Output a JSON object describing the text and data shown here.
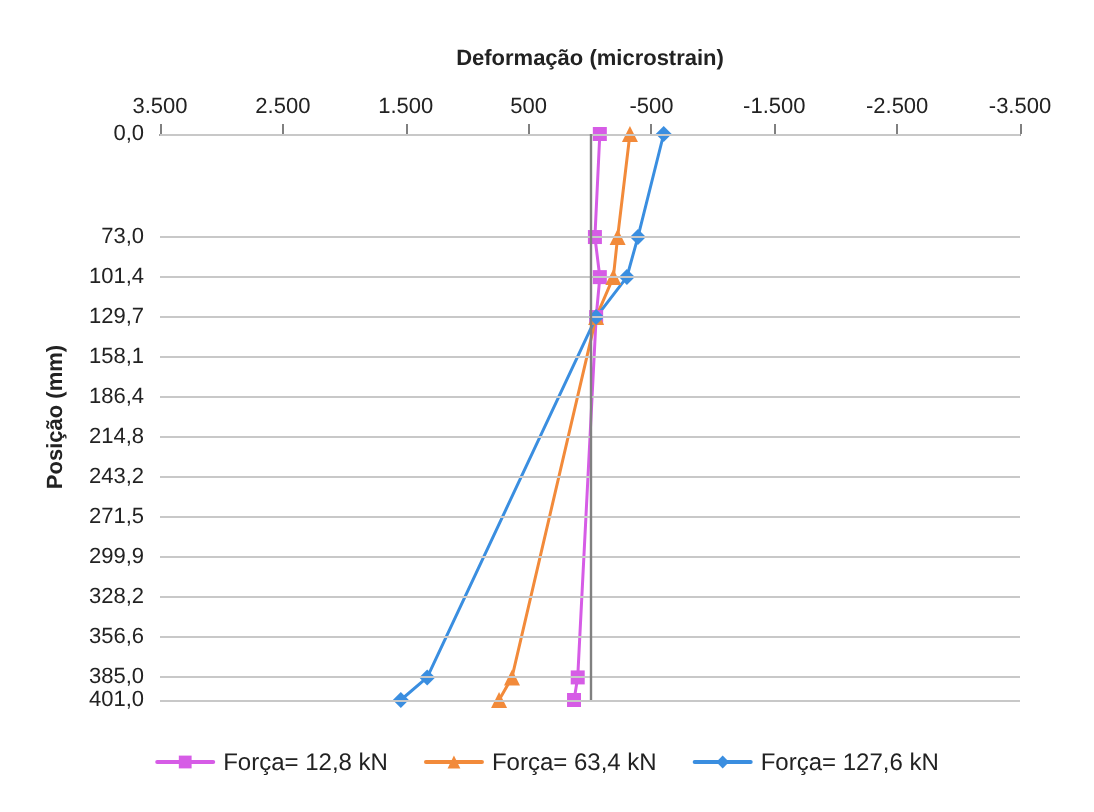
{
  "chart_data": {
    "type": "line",
    "xlabel": "Deformação (microstrain)",
    "ylabel": "Posição (mm)",
    "xlim": [
      3500,
      -3500
    ],
    "xticks": [
      {
        "value": 3500,
        "label": "3.500"
      },
      {
        "value": 2500,
        "label": "2.500"
      },
      {
        "value": 1500,
        "label": "1.500"
      },
      {
        "value": 500,
        "label": "500"
      },
      {
        "value": -500,
        "label": "-500"
      },
      {
        "value": -1500,
        "label": "-1.500"
      },
      {
        "value": -2500,
        "label": "-2.500"
      },
      {
        "value": -3500,
        "label": "-3.500"
      }
    ],
    "ylim": [
      401,
      0
    ],
    "yticks": [
      {
        "value": 0,
        "label": "0,0"
      },
      {
        "value": 73,
        "label": "73,0"
      },
      {
        "value": 101.4,
        "label": "101,4"
      },
      {
        "value": 129.7,
        "label": "129,7"
      },
      {
        "value": 158.1,
        "label": "158,1"
      },
      {
        "value": 186.4,
        "label": "186,4"
      },
      {
        "value": 214.8,
        "label": "214,8"
      },
      {
        "value": 243.2,
        "label": "243,2"
      },
      {
        "value": 271.5,
        "label": "271,5"
      },
      {
        "value": 299.9,
        "label": "299,9"
      },
      {
        "value": 328.2,
        "label": "328,2"
      },
      {
        "value": 356.6,
        "label": "356,6"
      },
      {
        "value": 385,
        "label": "385,0"
      },
      {
        "value": 401,
        "label": "401,0"
      }
    ],
    "series": [
      {
        "name": "Força= 12,8 kN",
        "color": "#d65ce6",
        "marker": "square",
        "x": [
          -80,
          -40,
          -80,
          -50,
          100,
          130
        ],
        "values": [
          0,
          73,
          101.4,
          129.7,
          385,
          401
        ]
      },
      {
        "name": "Força= 63,4 kN",
        "color": "#f28a3a",
        "marker": "triangle",
        "x": [
          -325,
          -225,
          -190,
          -50,
          635,
          740
        ],
        "values": [
          0,
          73,
          101.4,
          129.7,
          385,
          401
        ]
      },
      {
        "name": "Força= 127,6 kN",
        "color": "#3a8ee0",
        "marker": "diamond",
        "x": [
          -600,
          -390,
          -300,
          -50,
          1325,
          1540
        ],
        "values": [
          0,
          73,
          101.4,
          129.7,
          385,
          401
        ]
      }
    ],
    "ref_lines": [
      {
        "axis": "x",
        "value": 0,
        "color": "#808080"
      }
    ],
    "grid": "y",
    "legend": "bottom"
  }
}
